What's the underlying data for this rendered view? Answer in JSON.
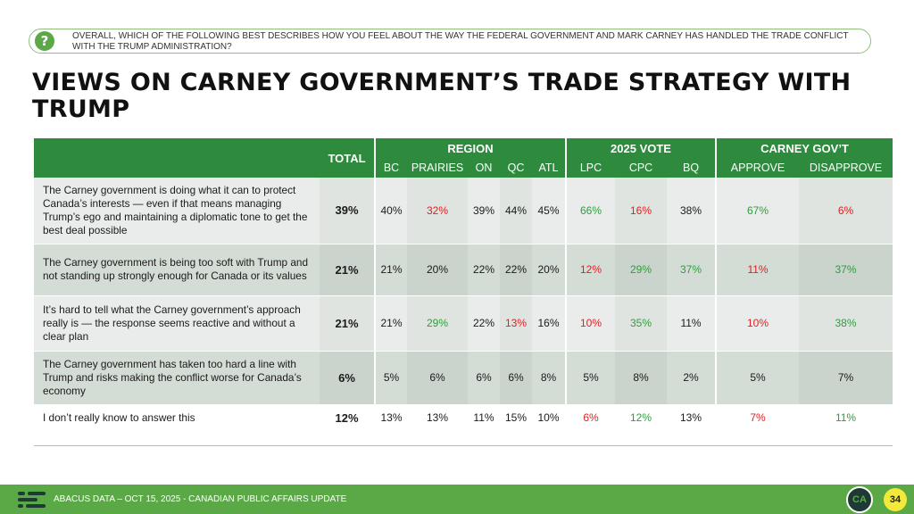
{
  "question": {
    "icon": "question-icon",
    "text": "Overall, which of the following best describes how you feel about the way the federal government and Mark Carney has handled the trade conflict with the Trump administration?"
  },
  "title": "VIEWS ON CARNEY GOVERNMENT’S TRADE STRATEGY WITH TRUMP",
  "table": {
    "total_label": "TOTAL",
    "groups": [
      {
        "label": "REGION",
        "columns": [
          "BC",
          "PRAIRIES",
          "ON",
          "QC",
          "ATL"
        ]
      },
      {
        "label": "2025 VOTE",
        "columns": [
          "LPC",
          "CPC",
          "BQ"
        ]
      },
      {
        "label": "CARNEY GOV’T",
        "columns": [
          "APPROVE",
          "DISAPPROVE"
        ]
      }
    ],
    "rows": [
      {
        "label": "The Carney government is doing what it can to protect Canada’s interests — even if that means managing Trump’s ego and maintaining a diplomatic tone to get the best deal possible",
        "total": "39%",
        "values": [
          "40%",
          "32%",
          "39%",
          "44%",
          "45%",
          "66%",
          "16%",
          "38%",
          "67%",
          "6%"
        ],
        "colors": [
          "black",
          "red",
          "black",
          "black",
          "black",
          "green",
          "red",
          "black",
          "green",
          "red"
        ]
      },
      {
        "label": "The Carney government is being too soft with Trump and not standing up strongly enough for Canada or its values",
        "total": "21%",
        "values": [
          "21%",
          "20%",
          "22%",
          "22%",
          "20%",
          "12%",
          "29%",
          "37%",
          "11%",
          "37%"
        ],
        "colors": [
          "black",
          "black",
          "black",
          "black",
          "black",
          "red",
          "green",
          "green",
          "red",
          "green"
        ]
      },
      {
        "label": "It’s hard to tell what the Carney government’s approach really is — the response seems reactive and without a clear plan",
        "total": "21%",
        "values": [
          "21%",
          "29%",
          "22%",
          "13%",
          "16%",
          "10%",
          "35%",
          "11%",
          "10%",
          "38%"
        ],
        "colors": [
          "black",
          "green",
          "black",
          "red",
          "black",
          "red",
          "green",
          "black",
          "red",
          "green"
        ]
      },
      {
        "label": "The Carney government has taken too hard a line with Trump and risks making the conflict worse for Canada’s economy",
        "total": "6%",
        "values": [
          "5%",
          "6%",
          "6%",
          "6%",
          "8%",
          "5%",
          "8%",
          "2%",
          "5%",
          "7%"
        ],
        "colors": [
          "black",
          "black",
          "black",
          "black",
          "black",
          "black",
          "black",
          "black",
          "black",
          "black"
        ]
      },
      {
        "label": "I don’t really know to answer this",
        "total": "12%",
        "values": [
          "13%",
          "13%",
          "11%",
          "15%",
          "10%",
          "6%",
          "12%",
          "13%",
          "7%",
          "11%"
        ],
        "colors": [
          "black",
          "black",
          "black",
          "black",
          "black",
          "red",
          "green",
          "black",
          "red",
          "green"
        ]
      }
    ]
  },
  "colors": {
    "header_green": "#2e8b3e",
    "accent_green": "#5ba847",
    "red": "#e02020",
    "green": "#2e9e3e",
    "page_badge": "#f2e93a"
  },
  "footer": {
    "logo_icon": "abacus-logo-icon",
    "text": "ABACUS DATA – OCT 15, 2025 - CANADIAN PUBLIC AFFAIRS UPDATE",
    "badge": "CA",
    "page_number": "34"
  }
}
